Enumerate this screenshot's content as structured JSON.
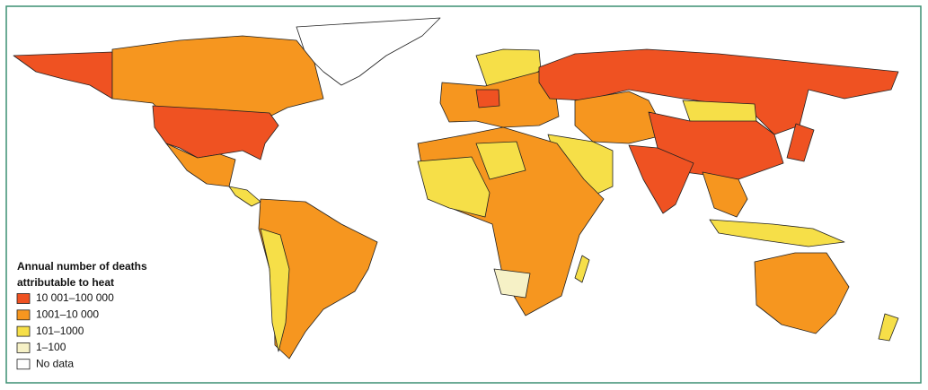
{
  "legend": {
    "title_lines": [
      "Annual number of deaths",
      "attributable to heat"
    ],
    "items": [
      {
        "label": "10 001–100 000",
        "color": "#ef5222"
      },
      {
        "label": "1001–10 000",
        "color": "#f6961f"
      },
      {
        "label": "101–1000",
        "color": "#f6df48"
      },
      {
        "label": "1–100",
        "color": "#f6f1c6"
      },
      {
        "label": "No data",
        "color": "#ffffff"
      }
    ]
  }
}
